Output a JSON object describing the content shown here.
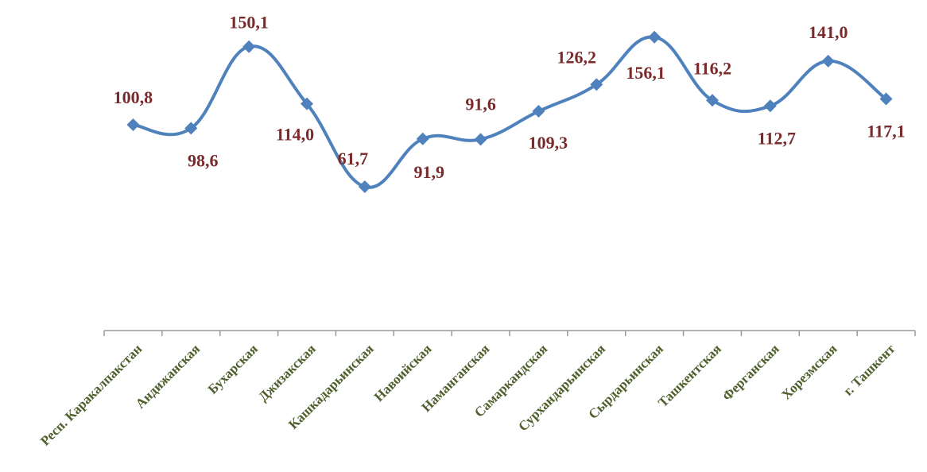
{
  "chart_data": {
    "type": "line",
    "categories": [
      "Респ. Каракалпакстан",
      "Андижанская",
      "Бухарская",
      "Джизакская",
      "Кашкадарьинская",
      "Навоийская",
      "Наманганская",
      "Самаркандская",
      "Сурхандарьинская",
      "Сырдарьинская",
      "Ташкентская",
      "Ферганская",
      "Хорезмская",
      "г. Ташкент"
    ],
    "values": [
      100.8,
      98.6,
      150.1,
      114.0,
      61.7,
      91.9,
      91.6,
      109.3,
      126.2,
      156.1,
      116.2,
      112.7,
      141.0,
      117.1
    ],
    "value_labels": [
      "100,8",
      "98,6",
      "150,1",
      "114,0",
      "61,7",
      "91,9",
      "91,6",
      "109,3",
      "126,2",
      "156,1",
      "116,2",
      "112,7",
      "141,0",
      "117,1"
    ],
    "title": "",
    "xlabel": "",
    "ylabel": "",
    "smooth": true,
    "marker": "diamond",
    "grid": false,
    "legend": "none",
    "colors": {
      "line": "#4f81bd",
      "marker": "#4f81bd",
      "data_label": "#7a2a2a",
      "tick_label": "#4e5f2b",
      "axis": "#9a9a9a"
    }
  }
}
